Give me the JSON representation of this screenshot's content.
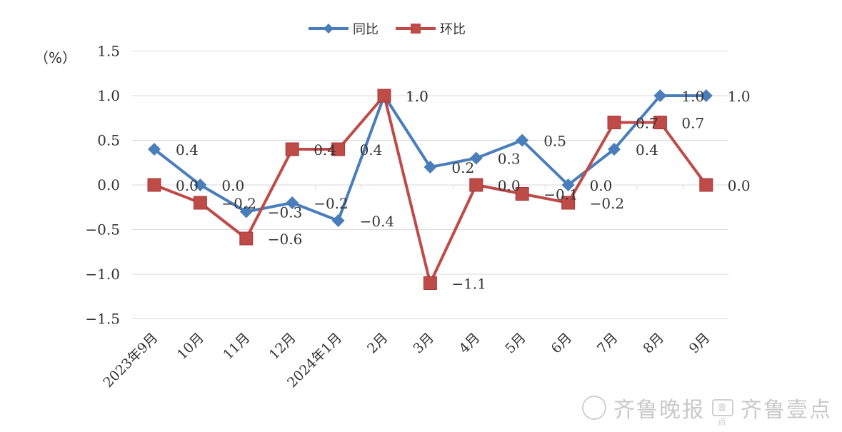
{
  "chart_data": {
    "type": "line",
    "title": "",
    "xlabel": "",
    "ylabel": "",
    "unit_label": "（%）",
    "categories": [
      "2023年9月",
      "10月",
      "11月",
      "12月",
      "2024年1月",
      "2月",
      "3月",
      "4月",
      "5月",
      "6月",
      "7月",
      "8月",
      "9月"
    ],
    "ylim": [
      -1.5,
      1.5
    ],
    "yticks": [
      "1.5",
      "1.0",
      "0.5",
      "0.0",
      "-0.5",
      "-1.0",
      "-1.5"
    ],
    "grid": true,
    "legend_position": "top-center",
    "series": [
      {
        "name": "同比",
        "color": "#4a7ebb",
        "marker": "diamond",
        "values": [
          0.4,
          0.0,
          -0.3,
          -0.2,
          -0.4,
          1.0,
          0.2,
          0.3,
          0.5,
          0.0,
          0.4,
          1.0,
          1.0
        ],
        "labels": [
          "0.4",
          "0.0",
          "-0.3",
          "-0.2",
          "-0.4",
          "1.0",
          "0.2",
          "0.3",
          "0.5",
          "0.0",
          "0.4",
          "1.0",
          "1.0"
        ]
      },
      {
        "name": "环比",
        "color": "#be4b48",
        "marker": "square",
        "values": [
          0.0,
          -0.2,
          -0.6,
          0.4,
          0.4,
          1.0,
          -1.1,
          0.0,
          -0.1,
          -0.2,
          0.7,
          0.7,
          0.0
        ],
        "labels": [
          "0.0",
          "-0.2",
          "-0.6",
          "0.4",
          "0.4",
          "1.0",
          "-1.1",
          "0.0",
          "-0.1",
          "-0.2",
          "0.7",
          "0.7",
          "0.0"
        ]
      }
    ]
  },
  "watermark": {
    "text1": "齐鲁晚报",
    "icon_text": "壹点",
    "text2": "齐鲁壹点",
    "logo_icon": "circle-logo-icon"
  }
}
